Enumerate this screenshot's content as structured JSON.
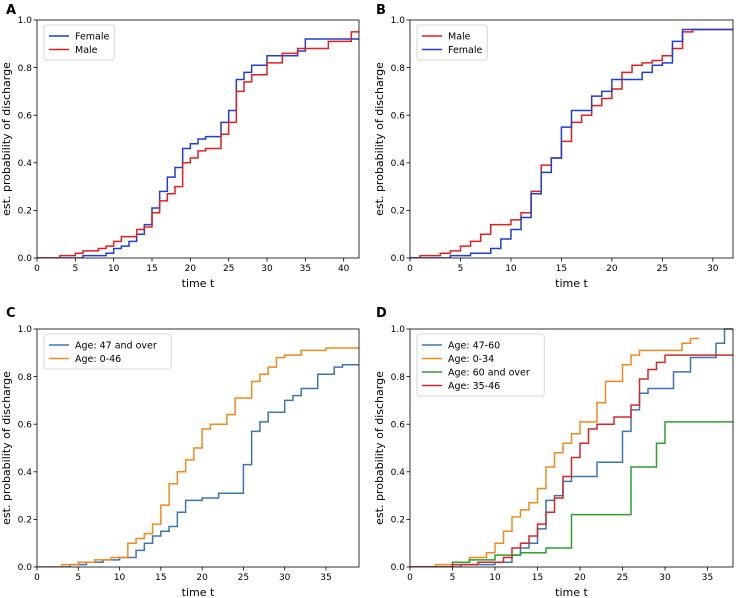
{
  "chart_data": [
    {
      "type": "line",
      "panel": "A",
      "xlabel": "time t",
      "ylabel": "est. probability of discharge",
      "xlim": [
        0,
        42
      ],
      "ylim": [
        0,
        1.0
      ],
      "xticks": [
        0,
        5,
        10,
        15,
        20,
        25,
        30,
        35,
        40
      ],
      "yticks": [
        0.0,
        0.2,
        0.4,
        0.6,
        0.8,
        1.0
      ],
      "legend_position": "upper-left",
      "series": [
        {
          "name": "Female",
          "color": "#1f3fd1",
          "steps": [
            [
              0,
              0
            ],
            [
              6,
              0.01
            ],
            [
              9,
              0.02
            ],
            [
              10,
              0.04
            ],
            [
              11,
              0.05
            ],
            [
              12,
              0.07
            ],
            [
              13,
              0.1
            ],
            [
              14,
              0.14
            ],
            [
              15,
              0.21
            ],
            [
              16,
              0.28
            ],
            [
              17,
              0.34
            ],
            [
              18,
              0.38
            ],
            [
              19,
              0.46
            ],
            [
              20,
              0.48
            ],
            [
              21,
              0.5
            ],
            [
              22,
              0.51
            ],
            [
              24,
              0.57
            ],
            [
              25,
              0.62
            ],
            [
              26,
              0.75
            ],
            [
              27,
              0.78
            ],
            [
              28,
              0.81
            ],
            [
              30,
              0.85
            ],
            [
              34,
              0.87
            ],
            [
              35,
              0.92
            ],
            [
              42,
              0.92
            ]
          ]
        },
        {
          "name": "Male",
          "color": "#e02020",
          "steps": [
            [
              0,
              0
            ],
            [
              3,
              0.01
            ],
            [
              5,
              0.02
            ],
            [
              6,
              0.03
            ],
            [
              8,
              0.04
            ],
            [
              9,
              0.05
            ],
            [
              10,
              0.07
            ],
            [
              11,
              0.09
            ],
            [
              13,
              0.12
            ],
            [
              14,
              0.13
            ],
            [
              15,
              0.19
            ],
            [
              16,
              0.24
            ],
            [
              17,
              0.27
            ],
            [
              18,
              0.3
            ],
            [
              19,
              0.4
            ],
            [
              20,
              0.42
            ],
            [
              21,
              0.45
            ],
            [
              22,
              0.46
            ],
            [
              24,
              0.52
            ],
            [
              25,
              0.57
            ],
            [
              26,
              0.7
            ],
            [
              27,
              0.74
            ],
            [
              28,
              0.77
            ],
            [
              30,
              0.82
            ],
            [
              32,
              0.86
            ],
            [
              34,
              0.88
            ],
            [
              38,
              0.91
            ],
            [
              41,
              0.95
            ],
            [
              42,
              0.95
            ]
          ]
        }
      ]
    },
    {
      "type": "line",
      "panel": "B",
      "xlabel": "time t",
      "ylabel": "est. probability of discharge",
      "xlim": [
        0,
        32
      ],
      "ylim": [
        0,
        1.0
      ],
      "xticks": [
        0,
        5,
        10,
        15,
        20,
        25,
        30
      ],
      "yticks": [
        0.0,
        0.2,
        0.4,
        0.6,
        0.8,
        1.0
      ],
      "legend_position": "upper-left",
      "series": [
        {
          "name": "Male",
          "color": "#e02020",
          "steps": [
            [
              0,
              0
            ],
            [
              1,
              0.01
            ],
            [
              3,
              0.02
            ],
            [
              4,
              0.03
            ],
            [
              5,
              0.05
            ],
            [
              6,
              0.07
            ],
            [
              7,
              0.1
            ],
            [
              8,
              0.14
            ],
            [
              10,
              0.16
            ],
            [
              11,
              0.19
            ],
            [
              12,
              0.28
            ],
            [
              13,
              0.39
            ],
            [
              14,
              0.42
            ],
            [
              15,
              0.49
            ],
            [
              16,
              0.57
            ],
            [
              17,
              0.6
            ],
            [
              18,
              0.64
            ],
            [
              19,
              0.67
            ],
            [
              20,
              0.71
            ],
            [
              21,
              0.78
            ],
            [
              22,
              0.81
            ],
            [
              23,
              0.82
            ],
            [
              24,
              0.83
            ],
            [
              25,
              0.85
            ],
            [
              26,
              0.88
            ],
            [
              27,
              0.95
            ],
            [
              28,
              0.96
            ],
            [
              32,
              0.96
            ]
          ]
        },
        {
          "name": "Female",
          "color": "#1f3fd1",
          "steps": [
            [
              0,
              0
            ],
            [
              4,
              0.01
            ],
            [
              6,
              0.02
            ],
            [
              8,
              0.04
            ],
            [
              9,
              0.08
            ],
            [
              10,
              0.12
            ],
            [
              11,
              0.17
            ],
            [
              12,
              0.27
            ],
            [
              13,
              0.36
            ],
            [
              14,
              0.42
            ],
            [
              15,
              0.55
            ],
            [
              16,
              0.62
            ],
            [
              17,
              0.62
            ],
            [
              18,
              0.68
            ],
            [
              19,
              0.7
            ],
            [
              20,
              0.75
            ],
            [
              22,
              0.75
            ],
            [
              23,
              0.78
            ],
            [
              24,
              0.81
            ],
            [
              25,
              0.82
            ],
            [
              26,
              0.91
            ],
            [
              27,
              0.96
            ],
            [
              32,
              0.96
            ]
          ]
        }
      ]
    },
    {
      "type": "line",
      "panel": "C",
      "xlabel": "time t",
      "ylabel": "est. probability of discharge",
      "xlim": [
        0,
        39
      ],
      "ylim": [
        0,
        1.0
      ],
      "xticks": [
        0,
        5,
        10,
        15,
        20,
        25,
        30,
        35
      ],
      "yticks": [
        0.0,
        0.2,
        0.4,
        0.6,
        0.8,
        1.0
      ],
      "legend_position": "upper-left",
      "series": [
        {
          "name": "Age: 47 and over",
          "color": "#3a76b0",
          "steps": [
            [
              0,
              0
            ],
            [
              4,
              0.01
            ],
            [
              6,
              0.02
            ],
            [
              8,
              0.03
            ],
            [
              10,
              0.04
            ],
            [
              12,
              0.07
            ],
            [
              13,
              0.1
            ],
            [
              14,
              0.13
            ],
            [
              15,
              0.15
            ],
            [
              16,
              0.17
            ],
            [
              17,
              0.23
            ],
            [
              18,
              0.28
            ],
            [
              20,
              0.29
            ],
            [
              22,
              0.31
            ],
            [
              25,
              0.43
            ],
            [
              26,
              0.57
            ],
            [
              27,
              0.61
            ],
            [
              28,
              0.65
            ],
            [
              30,
              0.7
            ],
            [
              31,
              0.72
            ],
            [
              32,
              0.75
            ],
            [
              34,
              0.81
            ],
            [
              36,
              0.84
            ],
            [
              37,
              0.85
            ],
            [
              39,
              0.85
            ]
          ]
        },
        {
          "name": "Age: 0-46",
          "color": "#f08a1c",
          "steps": [
            [
              0,
              0
            ],
            [
              3,
              0.01
            ],
            [
              5,
              0.02
            ],
            [
              7,
              0.03
            ],
            [
              9,
              0.04
            ],
            [
              11,
              0.1
            ],
            [
              12,
              0.12
            ],
            [
              13,
              0.14
            ],
            [
              14,
              0.18
            ],
            [
              15,
              0.26
            ],
            [
              16,
              0.35
            ],
            [
              17,
              0.4
            ],
            [
              18,
              0.45
            ],
            [
              19,
              0.5
            ],
            [
              20,
              0.58
            ],
            [
              21,
              0.6
            ],
            [
              23,
              0.64
            ],
            [
              24,
              0.71
            ],
            [
              26,
              0.78
            ],
            [
              27,
              0.81
            ],
            [
              28,
              0.84
            ],
            [
              29,
              0.88
            ],
            [
              30,
              0.89
            ],
            [
              32,
              0.91
            ],
            [
              35,
              0.92
            ],
            [
              39,
              0.92
            ]
          ]
        }
      ]
    },
    {
      "type": "line",
      "panel": "D",
      "xlabel": "time t",
      "ylabel": "est. probability of discharge",
      "xlim": [
        0,
        38
      ],
      "ylim": [
        0,
        1.0
      ],
      "xticks": [
        0,
        5,
        10,
        15,
        20,
        25,
        30,
        35
      ],
      "yticks": [
        0.0,
        0.2,
        0.4,
        0.6,
        0.8,
        1.0
      ],
      "legend_position": "upper-left",
      "series": [
        {
          "name": "Age: 47-60",
          "color": "#3a76b0",
          "steps": [
            [
              0,
              0
            ],
            [
              6,
              0.01
            ],
            [
              10,
              0.02
            ],
            [
              12,
              0.05
            ],
            [
              13,
              0.08
            ],
            [
              14,
              0.1
            ],
            [
              15,
              0.16
            ],
            [
              16,
              0.28
            ],
            [
              17,
              0.3
            ],
            [
              18,
              0.36
            ],
            [
              19,
              0.38
            ],
            [
              22,
              0.44
            ],
            [
              25,
              0.57
            ],
            [
              26,
              0.66
            ],
            [
              27,
              0.73
            ],
            [
              28,
              0.75
            ],
            [
              31,
              0.82
            ],
            [
              33,
              0.88
            ],
            [
              36,
              0.94
            ],
            [
              37,
              1.0
            ],
            [
              38,
              1.0
            ]
          ]
        },
        {
          "name": "Age: 0-34",
          "color": "#f08a1c",
          "steps": [
            [
              0,
              0
            ],
            [
              3,
              0.01
            ],
            [
              5,
              0.02
            ],
            [
              7,
              0.04
            ],
            [
              9,
              0.06
            ],
            [
              10,
              0.1
            ],
            [
              11,
              0.15
            ],
            [
              12,
              0.21
            ],
            [
              13,
              0.24
            ],
            [
              14,
              0.27
            ],
            [
              15,
              0.33
            ],
            [
              16,
              0.42
            ],
            [
              17,
              0.48
            ],
            [
              18,
              0.52
            ],
            [
              19,
              0.56
            ],
            [
              20,
              0.61
            ],
            [
              22,
              0.69
            ],
            [
              23,
              0.78
            ],
            [
              25,
              0.85
            ],
            [
              26,
              0.89
            ],
            [
              27,
              0.91
            ],
            [
              32,
              0.94
            ],
            [
              33,
              0.96
            ],
            [
              34,
              0.96
            ]
          ]
        },
        {
          "name": "Age: 60 and over",
          "color": "#2ca02c",
          "steps": [
            [
              0,
              0
            ],
            [
              5,
              0.02
            ],
            [
              7,
              0.03
            ],
            [
              10,
              0.05
            ],
            [
              13,
              0.06
            ],
            [
              16,
              0.08
            ],
            [
              19,
              0.22
            ],
            [
              26,
              0.42
            ],
            [
              29,
              0.52
            ],
            [
              30,
              0.61
            ],
            [
              38,
              0.61
            ]
          ]
        },
        {
          "name": "Age: 35-46",
          "color": "#d62728",
          "steps": [
            [
              0,
              0
            ],
            [
              5,
              0.01
            ],
            [
              8,
              0.02
            ],
            [
              11,
              0.04
            ],
            [
              12,
              0.08
            ],
            [
              13,
              0.1
            ],
            [
              14,
              0.13
            ],
            [
              15,
              0.18
            ],
            [
              16,
              0.23
            ],
            [
              17,
              0.29
            ],
            [
              18,
              0.38
            ],
            [
              19,
              0.46
            ],
            [
              20,
              0.52
            ],
            [
              21,
              0.58
            ],
            [
              22,
              0.6
            ],
            [
              24,
              0.63
            ],
            [
              26,
              0.68
            ],
            [
              27,
              0.79
            ],
            [
              28,
              0.83
            ],
            [
              29,
              0.86
            ],
            [
              30,
              0.89
            ],
            [
              38,
              0.89
            ]
          ]
        }
      ]
    }
  ]
}
